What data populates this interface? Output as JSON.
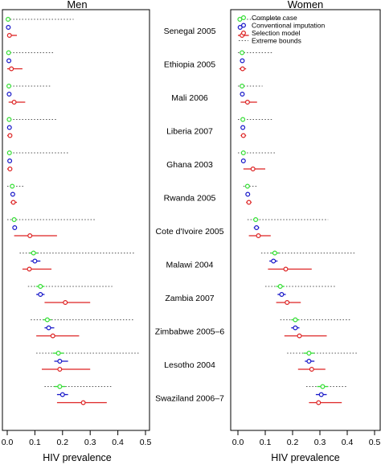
{
  "chart_data": {
    "type": "scatter",
    "description_free": true,
    "panels": [
      {
        "title": "Men",
        "xlabel": "HIV prevalence",
        "xlim": [
          -0.005,
          0.505
        ],
        "ticks": [
          0.0,
          0.1,
          0.2,
          0.3,
          0.4,
          0.5
        ],
        "tick_labels": [
          "0.0",
          "0.1",
          "0.2",
          "0.3",
          "0.4",
          "0.5"
        ],
        "rows": [
          {
            "country": "Senegal 2005",
            "bounds": [
              0.0,
              0.24
            ],
            "complete": {
              "v": 0.003,
              "lo": 0.0,
              "hi": 0.008
            },
            "conventional": {
              "v": 0.004,
              "lo": 0.0,
              "hi": 0.008
            },
            "selection": {
              "v": 0.008,
              "lo": 0.0,
              "hi": 0.035
            }
          },
          {
            "country": "Ethiopia 2005",
            "bounds": [
              0.0,
              0.17
            ],
            "complete": {
              "v": 0.005,
              "lo": 0.0,
              "hi": 0.01
            },
            "conventional": {
              "v": 0.006,
              "lo": 0.001,
              "hi": 0.01
            },
            "selection": {
              "v": 0.015,
              "lo": 0.0,
              "hi": 0.055
            }
          },
          {
            "country": "Mali 2006",
            "bounds": [
              0.0,
              0.16
            ],
            "complete": {
              "v": 0.006,
              "lo": 0.0,
              "hi": 0.01
            },
            "conventional": {
              "v": 0.007,
              "lo": 0.002,
              "hi": 0.012
            },
            "selection": {
              "v": 0.025,
              "lo": 0.005,
              "hi": 0.065
            }
          },
          {
            "country": "Liberia 2007",
            "bounds": [
              0.0,
              0.18
            ],
            "complete": {
              "v": 0.007,
              "lo": 0.0,
              "hi": 0.012
            },
            "conventional": {
              "v": 0.008,
              "lo": 0.002,
              "hi": 0.012
            },
            "selection": {
              "v": 0.01,
              "lo": 0.0,
              "hi": 0.015
            }
          },
          {
            "country": "Ghana 2003",
            "bounds": [
              0.0,
              0.22
            ],
            "complete": {
              "v": 0.008,
              "lo": 0.0,
              "hi": 0.012
            },
            "conventional": {
              "v": 0.009,
              "lo": 0.003,
              "hi": 0.013
            },
            "selection": {
              "v": 0.01,
              "lo": 0.0,
              "hi": 0.015
            }
          },
          {
            "country": "Rwanda 2005",
            "bounds": [
              0.0,
              0.06
            ],
            "complete": {
              "v": 0.018,
              "lo": 0.012,
              "hi": 0.025
            },
            "conventional": {
              "v": 0.02,
              "lo": 0.014,
              "hi": 0.025
            },
            "selection": {
              "v": 0.022,
              "lo": 0.012,
              "hi": 0.035
            }
          },
          {
            "country": "Cote d'Ivoire 2005",
            "bounds": [
              0.0,
              0.32
            ],
            "complete": {
              "v": 0.025,
              "lo": 0.018,
              "hi": 0.033
            },
            "conventional": {
              "v": 0.027,
              "lo": 0.02,
              "hi": 0.035
            },
            "selection": {
              "v": 0.082,
              "lo": 0.025,
              "hi": 0.18
            }
          },
          {
            "country": "Malawi 2004",
            "bounds": [
              0.045,
              0.46
            ],
            "complete": {
              "v": 0.095,
              "lo": 0.08,
              "hi": 0.11
            },
            "conventional": {
              "v": 0.1,
              "lo": 0.085,
              "hi": 0.12
            },
            "selection": {
              "v": 0.08,
              "lo": 0.055,
              "hi": 0.16
            }
          },
          {
            "country": "Zambia 2007",
            "bounds": [
              0.075,
              0.38
            ],
            "complete": {
              "v": 0.12,
              "lo": 0.105,
              "hi": 0.135
            },
            "conventional": {
              "v": 0.12,
              "lo": 0.105,
              "hi": 0.135
            },
            "selection": {
              "v": 0.21,
              "lo": 0.135,
              "hi": 0.3
            }
          },
          {
            "country": "Zimbabwe 2005–6",
            "bounds": [
              0.085,
              0.46
            ],
            "complete": {
              "v": 0.145,
              "lo": 0.13,
              "hi": 0.16
            },
            "conventional": {
              "v": 0.15,
              "lo": 0.135,
              "hi": 0.17
            },
            "selection": {
              "v": 0.165,
              "lo": 0.105,
              "hi": 0.26
            }
          },
          {
            "country": "Lesotho 2004",
            "bounds": [
              0.105,
              0.48
            ],
            "complete": {
              "v": 0.185,
              "lo": 0.165,
              "hi": 0.205
            },
            "conventional": {
              "v": 0.19,
              "lo": 0.17,
              "hi": 0.22
            },
            "selection": {
              "v": 0.19,
              "lo": 0.125,
              "hi": 0.3
            }
          },
          {
            "country": "Swaziland 2006–7",
            "bounds": [
              0.135,
              0.38
            ],
            "complete": {
              "v": 0.19,
              "lo": 0.17,
              "hi": 0.21
            },
            "conventional": {
              "v": 0.2,
              "lo": 0.18,
              "hi": 0.22
            },
            "selection": {
              "v": 0.275,
              "lo": 0.18,
              "hi": 0.36
            }
          }
        ]
      },
      {
        "title": "Women",
        "xlabel": "HIV prevalence",
        "xlim": [
          -0.005,
          0.505
        ],
        "ticks": [
          0.0,
          0.1,
          0.2,
          0.3,
          0.4,
          0.5
        ],
        "tick_labels": [
          "0.0",
          "0.1",
          "0.2",
          "0.3",
          "0.4",
          "0.5"
        ],
        "legend": {
          "placement": "top-right",
          "entries": [
            "Complete case",
            "Conventional imputation",
            "Selection model",
            "Extreme bounds"
          ]
        },
        "rows": [
          {
            "country": "Senegal 2005",
            "bounds": [
              0.0,
              0.17
            ],
            "complete": {
              "v": 0.007,
              "lo": 0.002,
              "hi": 0.012
            },
            "conventional": {
              "v": 0.008,
              "lo": 0.003,
              "hi": 0.012
            },
            "selection": {
              "v": 0.015,
              "lo": 0.0,
              "hi": 0.04
            }
          },
          {
            "country": "Ethiopia 2005",
            "bounds": [
              0.0,
              0.13
            ],
            "complete": {
              "v": 0.015,
              "lo": 0.008,
              "hi": 0.02
            },
            "conventional": {
              "v": 0.016,
              "lo": 0.01,
              "hi": 0.022
            },
            "selection": {
              "v": 0.017,
              "lo": 0.005,
              "hi": 0.03
            }
          },
          {
            "country": "Mali 2006",
            "bounds": [
              0.0,
              0.09
            ],
            "complete": {
              "v": 0.015,
              "lo": 0.008,
              "hi": 0.02
            },
            "conventional": {
              "v": 0.016,
              "lo": 0.01,
              "hi": 0.022
            },
            "selection": {
              "v": 0.035,
              "lo": 0.01,
              "hi": 0.07
            }
          },
          {
            "country": "Liberia 2007",
            "bounds": [
              0.0,
              0.13
            ],
            "complete": {
              "v": 0.018,
              "lo": 0.01,
              "hi": 0.025
            },
            "conventional": {
              "v": 0.018,
              "lo": 0.012,
              "hi": 0.025
            },
            "selection": {
              "v": 0.02,
              "lo": 0.01,
              "hi": 0.03
            }
          },
          {
            "country": "Ghana 2003",
            "bounds": [
              0.0,
              0.14
            ],
            "complete": {
              "v": 0.02,
              "lo": 0.012,
              "hi": 0.028
            },
            "conventional": {
              "v": 0.02,
              "lo": 0.014,
              "hi": 0.028
            },
            "selection": {
              "v": 0.055,
              "lo": 0.02,
              "hi": 0.1
            }
          },
          {
            "country": "Rwanda 2005",
            "bounds": [
              0.02,
              0.07
            ],
            "complete": {
              "v": 0.035,
              "lo": 0.028,
              "hi": 0.042
            },
            "conventional": {
              "v": 0.036,
              "lo": 0.03,
              "hi": 0.044
            },
            "selection": {
              "v": 0.04,
              "lo": 0.03,
              "hi": 0.05
            }
          },
          {
            "country": "Cote d'Ivoire 2005",
            "bounds": [
              0.035,
              0.33
            ],
            "complete": {
              "v": 0.065,
              "lo": 0.055,
              "hi": 0.075
            },
            "conventional": {
              "v": 0.068,
              "lo": 0.058,
              "hi": 0.078
            },
            "selection": {
              "v": 0.075,
              "lo": 0.04,
              "hi": 0.12
            }
          },
          {
            "country": "Malawi 2004",
            "bounds": [
              0.085,
              0.43
            ],
            "complete": {
              "v": 0.135,
              "lo": 0.12,
              "hi": 0.15
            },
            "conventional": {
              "v": 0.13,
              "lo": 0.115,
              "hi": 0.145
            },
            "selection": {
              "v": 0.175,
              "lo": 0.11,
              "hi": 0.27
            }
          },
          {
            "country": "Zambia 2007",
            "bounds": [
              0.1,
              0.36
            ],
            "complete": {
              "v": 0.155,
              "lo": 0.14,
              "hi": 0.17
            },
            "conventional": {
              "v": 0.16,
              "lo": 0.145,
              "hi": 0.175
            },
            "selection": {
              "v": 0.18,
              "lo": 0.14,
              "hi": 0.23
            }
          },
          {
            "country": "Zimbabwe 2005–6",
            "bounds": [
              0.155,
              0.41
            ],
            "complete": {
              "v": 0.21,
              "lo": 0.195,
              "hi": 0.225
            },
            "conventional": {
              "v": 0.21,
              "lo": 0.195,
              "hi": 0.225
            },
            "selection": {
              "v": 0.225,
              "lo": 0.17,
              "hi": 0.325
            }
          },
          {
            "country": "Lesotho 2004",
            "bounds": [
              0.18,
              0.44
            ],
            "complete": {
              "v": 0.26,
              "lo": 0.24,
              "hi": 0.28
            },
            "conventional": {
              "v": 0.26,
              "lo": 0.245,
              "hi": 0.28
            },
            "selection": {
              "v": 0.27,
              "lo": 0.22,
              "hi": 0.32
            }
          },
          {
            "country": "Swaziland 2006–7",
            "bounds": [
              0.25,
              0.4
            ],
            "complete": {
              "v": 0.31,
              "lo": 0.29,
              "hi": 0.33
            },
            "conventional": {
              "v": 0.305,
              "lo": 0.285,
              "hi": 0.325
            },
            "selection": {
              "v": 0.295,
              "lo": 0.26,
              "hi": 0.38
            }
          }
        ]
      }
    ],
    "series": [
      {
        "name": "Complete case",
        "color": "#33dd33"
      },
      {
        "name": "Conventional imputation",
        "color": "#1515c8"
      },
      {
        "name": "Selection model",
        "color": "#dd2222"
      },
      {
        "name": "Extreme bounds",
        "color": "#555555"
      }
    ],
    "grid": false
  }
}
